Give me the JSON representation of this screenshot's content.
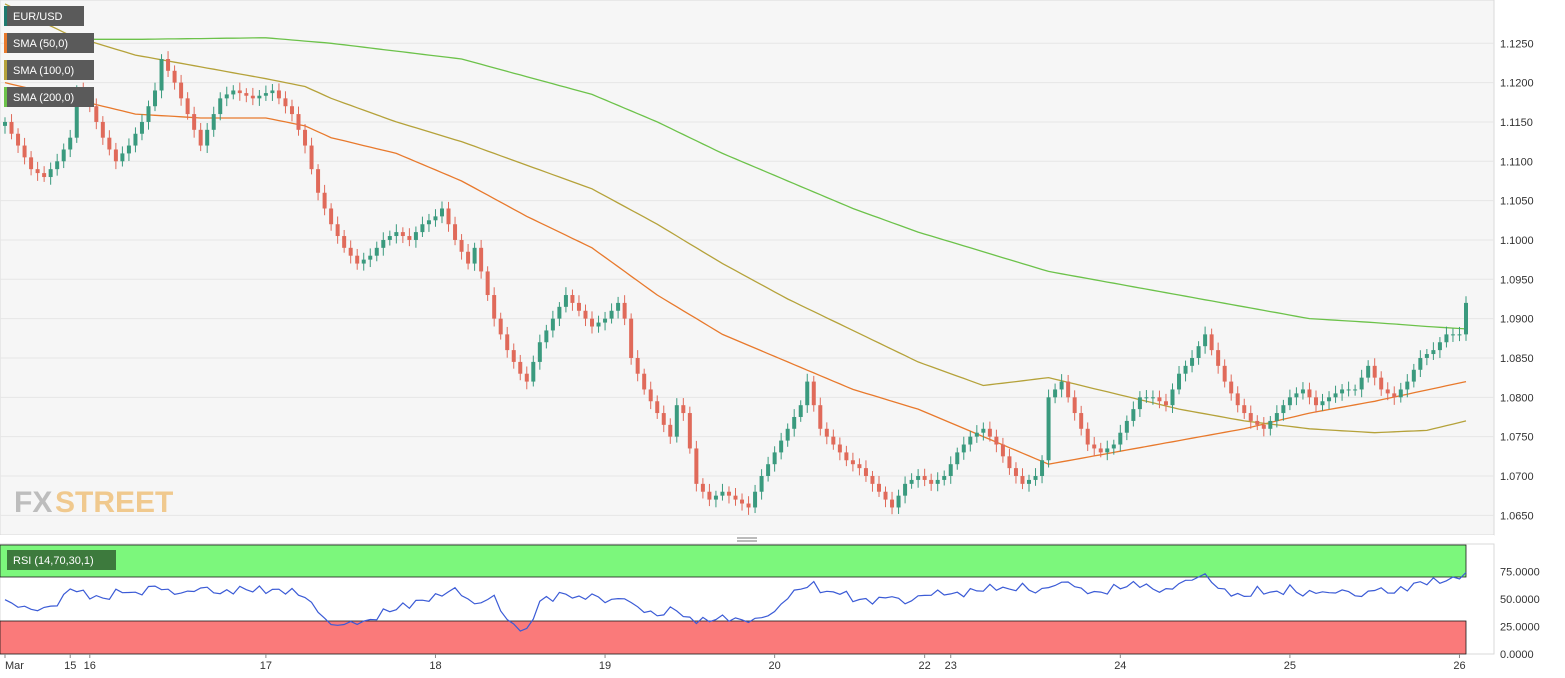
{
  "legend": [
    {
      "label": "EUR/USD",
      "color": "#1f7a6e"
    },
    {
      "label": "SMA (50,0)",
      "color": "#e8792c"
    },
    {
      "label": "SMA (100,0)",
      "color": "#b5a23a"
    },
    {
      "label": "SMA (200,0)",
      "color": "#6cc24a"
    }
  ],
  "watermark": {
    "part1": "FX",
    "part2": "STREET"
  },
  "colors": {
    "bull": "#3a9a7e",
    "bear": "#e06a5a",
    "sma50": "#e8792c",
    "sma100": "#b5a23a",
    "sma200": "#6cc24a",
    "rsi_line": "#3b5bd6",
    "overbought": "#7cf77c",
    "oversold": "#fa7a7a",
    "grid": "#e6e6e6",
    "axis_text": "#333333"
  },
  "chart_data": [
    {
      "type": "candlestick",
      "title": "EUR/USD",
      "ylim": [
        1.0625,
        1.1305
      ],
      "y_ticks": [
        1.125,
        1.12,
        1.115,
        1.11,
        1.105,
        1.1,
        1.095,
        1.09,
        1.085,
        1.08,
        1.075,
        1.07,
        1.065
      ],
      "y_tick_labels": [
        "1.1250",
        "1.1200",
        "1.1150",
        "1.1100",
        "1.1050",
        "1.1000",
        "1.0950",
        "1.0900",
        "1.0850",
        "1.0800",
        "1.0750",
        "1.0700",
        "1.0650"
      ],
      "price_anchors": [
        [
          0,
          1.115
        ],
        [
          2,
          1.112
        ],
        [
          4,
          1.109
        ],
        [
          6,
          1.108
        ],
        [
          8,
          1.11
        ],
        [
          10,
          1.113
        ],
        [
          11,
          1.119
        ],
        [
          13,
          1.117
        ],
        [
          15,
          1.113
        ],
        [
          17,
          1.11
        ],
        [
          19,
          1.112
        ],
        [
          21,
          1.115
        ],
        [
          23,
          1.119
        ],
        [
          24,
          1.123
        ],
        [
          26,
          1.12
        ],
        [
          28,
          1.116
        ],
        [
          30,
          1.112
        ],
        [
          31,
          1.114
        ],
        [
          33,
          1.118
        ],
        [
          35,
          1.119
        ],
        [
          38,
          1.118
        ],
        [
          41,
          1.119
        ],
        [
          43,
          1.117
        ],
        [
          44,
          1.116
        ],
        [
          46,
          1.112
        ],
        [
          48,
          1.106
        ],
        [
          50,
          1.102
        ],
        [
          52,
          1.099
        ],
        [
          54,
          1.097
        ],
        [
          56,
          1.098
        ],
        [
          58,
          1.1
        ],
        [
          60,
          1.101
        ],
        [
          62,
          1.1
        ],
        [
          64,
          1.102
        ],
        [
          66,
          1.103
        ],
        [
          67,
          1.104
        ],
        [
          69,
          1.1
        ],
        [
          71,
          1.097
        ],
        [
          72,
          1.099
        ],
        [
          73,
          1.096
        ],
        [
          75,
          1.09
        ],
        [
          77,
          1.086
        ],
        [
          79,
          1.083
        ],
        [
          80,
          1.082
        ],
        [
          82,
          1.087
        ],
        [
          84,
          1.09
        ],
        [
          86,
          1.093
        ],
        [
          88,
          1.091
        ],
        [
          90,
          1.089
        ],
        [
          92,
          1.09
        ],
        [
          94,
          1.092
        ],
        [
          95,
          1.09
        ],
        [
          96,
          1.085
        ],
        [
          98,
          1.081
        ],
        [
          100,
          1.078
        ],
        [
          102,
          1.075
        ],
        [
          103,
          1.079
        ],
        [
          104,
          1.078
        ],
        [
          106,
          1.069
        ],
        [
          108,
          1.067
        ],
        [
          110,
          1.068
        ],
        [
          112,
          1.067
        ],
        [
          114,
          1.066
        ],
        [
          116,
          1.07
        ],
        [
          118,
          1.073
        ],
        [
          120,
          1.076
        ],
        [
          122,
          1.079
        ],
        [
          123,
          1.082
        ],
        [
          125,
          1.076
        ],
        [
          127,
          1.074
        ],
        [
          129,
          1.072
        ],
        [
          131,
          1.071
        ],
        [
          133,
          1.069
        ],
        [
          135,
          1.067
        ],
        [
          136,
          1.066
        ],
        [
          138,
          1.069
        ],
        [
          140,
          1.07
        ],
        [
          142,
          1.069
        ],
        [
          144,
          1.07
        ],
        [
          146,
          1.073
        ],
        [
          148,
          1.075
        ],
        [
          150,
          1.076
        ],
        [
          152,
          1.074
        ],
        [
          154,
          1.071
        ],
        [
          156,
          1.069
        ],
        [
          158,
          1.07
        ],
        [
          159,
          1.072
        ],
        [
          160,
          1.08
        ],
        [
          162,
          1.082
        ],
        [
          164,
          1.078
        ],
        [
          166,
          1.074
        ],
        [
          168,
          1.073
        ],
        [
          170,
          1.074
        ],
        [
          172,
          1.077
        ],
        [
          174,
          1.08
        ],
        [
          176,
          1.08
        ],
        [
          178,
          1.079
        ],
        [
          180,
          1.083
        ],
        [
          182,
          1.085
        ],
        [
          184,
          1.088
        ],
        [
          185,
          1.086
        ],
        [
          187,
          1.082
        ],
        [
          189,
          1.079
        ],
        [
          191,
          1.077
        ],
        [
          193,
          1.076
        ],
        [
          195,
          1.078
        ],
        [
          197,
          1.08
        ],
        [
          199,
          1.081
        ],
        [
          201,
          1.079
        ],
        [
          203,
          1.08
        ],
        [
          205,
          1.081
        ],
        [
          207,
          1.081
        ],
        [
          209,
          1.084
        ],
        [
          211,
          1.081
        ],
        [
          213,
          1.08
        ],
        [
          215,
          1.082
        ],
        [
          217,
          1.085
        ],
        [
          219,
          1.086
        ],
        [
          221,
          1.088
        ],
        [
          222,
          1.088
        ],
        [
          223,
          1.088
        ],
        [
          224,
          1.092
        ]
      ],
      "x_ticks": [
        {
          "label": "Mar",
          "i": 0
        },
        {
          "label": "15",
          "i": 10
        },
        {
          "label": "16",
          "i": 13
        },
        {
          "label": "17",
          "i": 40
        },
        {
          "label": "18",
          "i": 66
        },
        {
          "label": "19",
          "i": 92
        },
        {
          "label": "20",
          "i": 118
        },
        {
          "label": "22",
          "i": 141
        },
        {
          "label": "23",
          "i": 145
        },
        {
          "label": "24",
          "i": 171
        },
        {
          "label": "25",
          "i": 197
        },
        {
          "label": "26",
          "i": 223
        }
      ],
      "series": [
        {
          "name": "SMA (50,0)",
          "anchors": [
            [
              0,
              1.12
            ],
            [
              10,
              1.118
            ],
            [
              20,
              1.116
            ],
            [
              30,
              1.1155
            ],
            [
              40,
              1.1155
            ],
            [
              46,
              1.1145
            ],
            [
              50,
              1.113
            ],
            [
              60,
              1.111
            ],
            [
              70,
              1.1075
            ],
            [
              80,
              1.103
            ],
            [
              90,
              1.099
            ],
            [
              100,
              1.093
            ],
            [
              110,
              1.088
            ],
            [
              120,
              1.0845
            ],
            [
              130,
              1.081
            ],
            [
              140,
              1.0785
            ],
            [
              150,
              1.075
            ],
            [
              160,
              1.0715
            ],
            [
              170,
              1.073
            ],
            [
              180,
              1.0745
            ],
            [
              190,
              1.076
            ],
            [
              200,
              1.078
            ],
            [
              210,
              1.0795
            ],
            [
              224,
              1.082
            ]
          ]
        },
        {
          "name": "SMA (100,0)",
          "anchors": [
            [
              0,
              1.13
            ],
            [
              10,
              1.126
            ],
            [
              20,
              1.1235
            ],
            [
              30,
              1.122
            ],
            [
              40,
              1.1205
            ],
            [
              46,
              1.1195
            ],
            [
              50,
              1.118
            ],
            [
              60,
              1.115
            ],
            [
              70,
              1.1125
            ],
            [
              80,
              1.1095
            ],
            [
              90,
              1.1065
            ],
            [
              100,
              1.102
            ],
            [
              110,
              1.097
            ],
            [
              120,
              1.0925
            ],
            [
              130,
              1.0885
            ],
            [
              140,
              1.0845
            ],
            [
              150,
              1.0815
            ],
            [
              160,
              1.0825
            ],
            [
              170,
              1.0805
            ],
            [
              180,
              1.0785
            ],
            [
              190,
              1.077
            ],
            [
              200,
              1.076
            ],
            [
              210,
              1.0755
            ],
            [
              218,
              1.0758
            ],
            [
              224,
              1.077
            ]
          ]
        },
        {
          "name": "SMA (200,0)",
          "anchors": [
            [
              0,
              1.1255
            ],
            [
              20,
              1.1255
            ],
            [
              40,
              1.1257
            ],
            [
              50,
              1.125
            ],
            [
              70,
              1.123
            ],
            [
              90,
              1.1185
            ],
            [
              100,
              1.115
            ],
            [
              110,
              1.111
            ],
            [
              120,
              1.1075
            ],
            [
              130,
              1.104
            ],
            [
              140,
              1.101
            ],
            [
              150,
              1.0985
            ],
            [
              160,
              1.096
            ],
            [
              170,
              1.0945
            ],
            [
              180,
              1.093
            ],
            [
              190,
              1.0915
            ],
            [
              200,
              1.09
            ],
            [
              210,
              1.0895
            ],
            [
              218,
              1.089
            ],
            [
              224,
              1.0887
            ]
          ]
        }
      ]
    },
    {
      "type": "line",
      "title": "RSI (14,70,30,1)",
      "ylim": [
        0,
        100
      ],
      "y_ticks": [
        75,
        50,
        25,
        0
      ],
      "y_tick_labels": [
        "75.0000",
        "50.0000",
        "25.0000",
        "0.0000"
      ],
      "overbought": 70,
      "oversold": 30,
      "anchors": [
        [
          0,
          48
        ],
        [
          3,
          42
        ],
        [
          5,
          40
        ],
        [
          8,
          45
        ],
        [
          10,
          60
        ],
        [
          13,
          53
        ],
        [
          15,
          50
        ],
        [
          18,
          58
        ],
        [
          20,
          54
        ],
        [
          23,
          62
        ],
        [
          26,
          55
        ],
        [
          29,
          57
        ],
        [
          30,
          61
        ],
        [
          33,
          55
        ],
        [
          36,
          59
        ],
        [
          40,
          58
        ],
        [
          44,
          57
        ],
        [
          46,
          52
        ],
        [
          50,
          26
        ],
        [
          53,
          28
        ],
        [
          56,
          30
        ],
        [
          58,
          38
        ],
        [
          62,
          45
        ],
        [
          66,
          52
        ],
        [
          69,
          59
        ],
        [
          72,
          45
        ],
        [
          75,
          52
        ],
        [
          77,
          30
        ],
        [
          80,
          20
        ],
        [
          82,
          48
        ],
        [
          86,
          55
        ],
        [
          88,
          50
        ],
        [
          90,
          54
        ],
        [
          92,
          48
        ],
        [
          95,
          51
        ],
        [
          97,
          42
        ],
        [
          100,
          35
        ],
        [
          103,
          42
        ],
        [
          104,
          33
        ],
        [
          107,
          30
        ],
        [
          110,
          33
        ],
        [
          114,
          30
        ],
        [
          116,
          33
        ],
        [
          118,
          38
        ],
        [
          120,
          52
        ],
        [
          122,
          60
        ],
        [
          124,
          63
        ],
        [
          126,
          55
        ],
        [
          128,
          57
        ],
        [
          130,
          50
        ],
        [
          133,
          48
        ],
        [
          136,
          53
        ],
        [
          138,
          46
        ],
        [
          140,
          52
        ],
        [
          143,
          56
        ],
        [
          146,
          54
        ],
        [
          149,
          58
        ],
        [
          152,
          61
        ],
        [
          154,
          58
        ],
        [
          156,
          62
        ],
        [
          158,
          56
        ],
        [
          160,
          61
        ],
        [
          163,
          66
        ],
        [
          165,
          58
        ],
        [
          168,
          55
        ],
        [
          170,
          60
        ],
        [
          172,
          62
        ],
        [
          174,
          64
        ],
        [
          176,
          59
        ],
        [
          178,
          57
        ],
        [
          180,
          64
        ],
        [
          182,
          68
        ],
        [
          184,
          72
        ],
        [
          186,
          60
        ],
        [
          188,
          55
        ],
        [
          190,
          52
        ],
        [
          192,
          58
        ],
        [
          195,
          55
        ],
        [
          197,
          60
        ],
        [
          199,
          54
        ],
        [
          201,
          57
        ],
        [
          203,
          55
        ],
        [
          205,
          58
        ],
        [
          208,
          52
        ],
        [
          210,
          60
        ],
        [
          212,
          56
        ],
        [
          214,
          58
        ],
        [
          216,
          63
        ],
        [
          218,
          66
        ],
        [
          220,
          66
        ],
        [
          222,
          68
        ],
        [
          224,
          73
        ]
      ]
    }
  ]
}
